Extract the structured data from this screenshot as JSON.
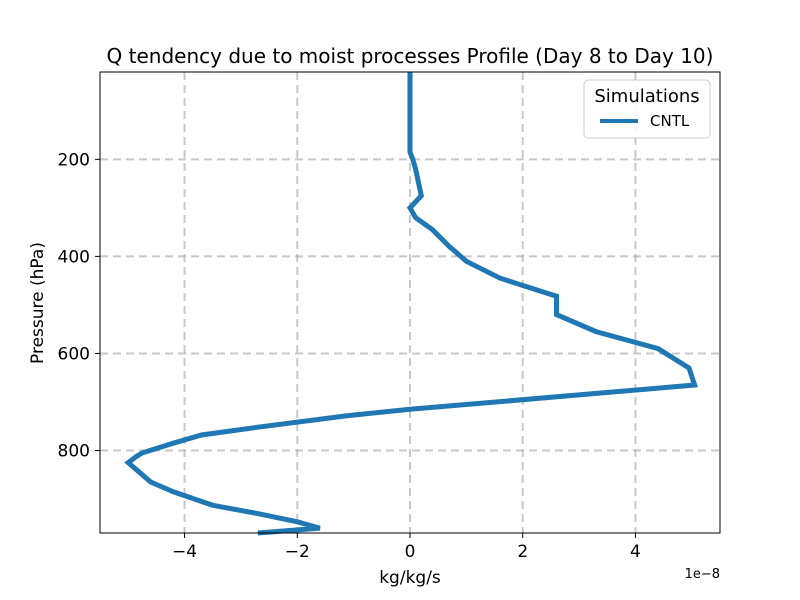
{
  "chart_data": {
    "type": "line",
    "title": "Q tendency due to moist processes Profile (Day 8 to Day 10)",
    "xlabel": "kg/kg/s",
    "ylabel": "Pressure (hPa)",
    "x_scale_label": "1e−8",
    "xlim": [
      -5.5,
      5.5
    ],
    "ylim": [
      970,
      20
    ],
    "y_inverted": true,
    "grid": true,
    "x_ticks": [
      -4,
      -2,
      0,
      2,
      4
    ],
    "x_tick_labels": [
      "−4",
      "−2",
      "0",
      "2",
      "4"
    ],
    "y_ticks": [
      200,
      400,
      600,
      800
    ],
    "y_tick_labels": [
      "200",
      "400",
      "600",
      "800"
    ],
    "legend": {
      "title": "Simulations",
      "position": "top-right"
    },
    "series": [
      {
        "name": "CNTL",
        "color": "#1f77b4",
        "x": [
          0.0,
          0.0,
          0.0,
          0.0,
          0.0,
          0.05,
          0.1,
          0.2,
          0.0,
          0.1,
          0.4,
          0.7,
          1.0,
          1.6,
          2.6,
          2.6,
          3.3,
          4.4,
          4.95,
          5.05,
          0.0,
          -1.1,
          -2.7,
          -3.7,
          -4.2,
          -4.75,
          -4.85,
          -5.0,
          -4.8,
          -4.6,
          -4.2,
          -3.5,
          -2.7,
          -2.0,
          -1.6,
          -2.7
        ],
        "y": [
          20,
          100,
          150,
          170,
          185,
          200,
          220,
          275,
          300,
          320,
          345,
          380,
          410,
          445,
          482,
          520,
          555,
          590,
          630,
          665,
          715,
          728,
          752,
          768,
          785,
          805,
          812,
          825,
          845,
          865,
          885,
          913,
          930,
          947,
          960,
          970
        ]
      }
    ]
  }
}
